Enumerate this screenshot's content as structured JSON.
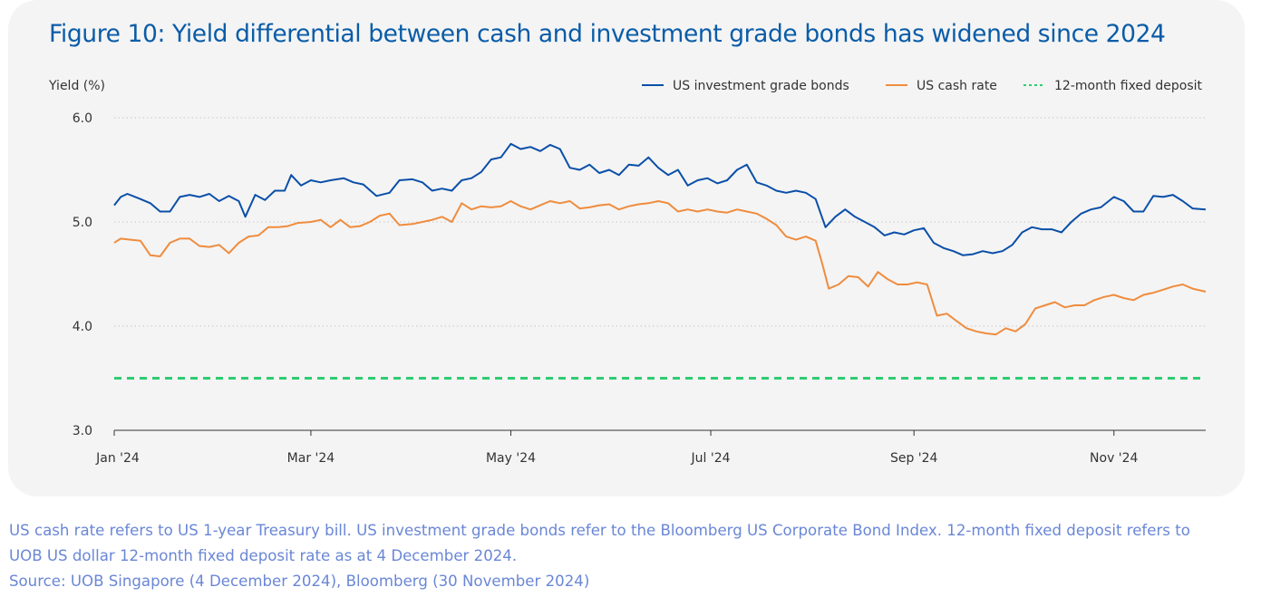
{
  "figure": {
    "title": "Figure 10: Yield differential between cash and investment grade bonds has widened since 2024"
  },
  "footnotes": [
    "US cash rate refers to US 1-year Treasury bill. US investment grade bonds refer to the Bloomberg US Corporate Bond Index. 12-month fixed deposit refers to",
    "UOB US dollar 12-month fixed deposit rate as at 4 December 2024.",
    "Source: UOB Singapore (4 December 2024), Bloomberg (30 November 2024)"
  ],
  "colors": {
    "ig_bonds": "#0a4fa8",
    "cash_rate": "#ef8c3e",
    "fixed_deposit": "#2ecc71",
    "grid": "#c8c8c8",
    "axis": "#333333"
  },
  "chart_data": {
    "type": "line",
    "title": "",
    "xlabel": "",
    "ylabel": "Yield (%)",
    "ylim": [
      3.0,
      6.0
    ],
    "yticks": [
      3.0,
      4.0,
      5.0,
      6.0
    ],
    "ytick_labels": [
      "3.0",
      "4.0",
      "5.0",
      "6.0"
    ],
    "xlim": [
      "2024-01-01",
      "2024-11-29"
    ],
    "xticks": [
      "2024-01-01",
      "2024-03-01",
      "2024-05-01",
      "2024-07-01",
      "2024-09-01",
      "2024-11-01"
    ],
    "xtick_labels": [
      "Jan '24",
      "Mar '24",
      "May '24",
      "Jul '24",
      "Sep '24",
      "Nov '24"
    ],
    "grid": "horizontal-dotted",
    "legend": "top-right",
    "series": [
      {
        "name": "US investment grade bonds",
        "style": "solid",
        "points": [
          [
            "2024-01-01",
            5.16
          ],
          [
            "2024-01-03",
            5.24
          ],
          [
            "2024-01-05",
            5.27
          ],
          [
            "2024-01-09",
            5.22
          ],
          [
            "2024-01-12",
            5.18
          ],
          [
            "2024-01-15",
            5.1
          ],
          [
            "2024-01-18",
            5.1
          ],
          [
            "2024-01-21",
            5.24
          ],
          [
            "2024-01-24",
            5.26
          ],
          [
            "2024-01-27",
            5.24
          ],
          [
            "2024-01-30",
            5.27
          ],
          [
            "2024-02-02",
            5.2
          ],
          [
            "2024-02-05",
            5.25
          ],
          [
            "2024-02-08",
            5.2
          ],
          [
            "2024-02-10",
            5.05
          ],
          [
            "2024-02-13",
            5.26
          ],
          [
            "2024-02-16",
            5.21
          ],
          [
            "2024-02-19",
            5.3
          ],
          [
            "2024-02-22",
            5.3
          ],
          [
            "2024-02-24",
            5.45
          ],
          [
            "2024-02-27",
            5.35
          ],
          [
            "2024-03-01",
            5.4
          ],
          [
            "2024-03-04",
            5.38
          ],
          [
            "2024-03-07",
            5.4
          ],
          [
            "2024-03-11",
            5.42
          ],
          [
            "2024-03-14",
            5.38
          ],
          [
            "2024-03-17",
            5.36
          ],
          [
            "2024-03-21",
            5.25
          ],
          [
            "2024-03-25",
            5.28
          ],
          [
            "2024-03-28",
            5.4
          ],
          [
            "2024-04-01",
            5.41
          ],
          [
            "2024-04-04",
            5.38
          ],
          [
            "2024-04-07",
            5.3
          ],
          [
            "2024-04-10",
            5.32
          ],
          [
            "2024-04-13",
            5.3
          ],
          [
            "2024-04-16",
            5.4
          ],
          [
            "2024-04-19",
            5.42
          ],
          [
            "2024-04-22",
            5.48
          ],
          [
            "2024-04-25",
            5.6
          ],
          [
            "2024-04-28",
            5.62
          ],
          [
            "2024-05-01",
            5.75
          ],
          [
            "2024-05-04",
            5.7
          ],
          [
            "2024-05-07",
            5.72
          ],
          [
            "2024-05-10",
            5.68
          ],
          [
            "2024-05-13",
            5.74
          ],
          [
            "2024-05-16",
            5.7
          ],
          [
            "2024-05-19",
            5.52
          ],
          [
            "2024-05-22",
            5.5
          ],
          [
            "2024-05-25",
            5.55
          ],
          [
            "2024-05-28",
            5.47
          ],
          [
            "2024-05-31",
            5.5
          ],
          [
            "2024-06-03",
            5.45
          ],
          [
            "2024-06-06",
            5.55
          ],
          [
            "2024-06-09",
            5.54
          ],
          [
            "2024-06-12",
            5.62
          ],
          [
            "2024-06-15",
            5.52
          ],
          [
            "2024-06-18",
            5.45
          ],
          [
            "2024-06-21",
            5.5
          ],
          [
            "2024-06-24",
            5.35
          ],
          [
            "2024-06-27",
            5.4
          ],
          [
            "2024-06-30",
            5.42
          ],
          [
            "2024-07-03",
            5.37
          ],
          [
            "2024-07-06",
            5.4
          ],
          [
            "2024-07-09",
            5.5
          ],
          [
            "2024-07-12",
            5.55
          ],
          [
            "2024-07-15",
            5.38
          ],
          [
            "2024-07-18",
            5.35
          ],
          [
            "2024-07-21",
            5.3
          ],
          [
            "2024-07-24",
            5.28
          ],
          [
            "2024-07-27",
            5.3
          ],
          [
            "2024-07-30",
            5.28
          ],
          [
            "2024-08-02",
            5.22
          ],
          [
            "2024-08-05",
            4.95
          ],
          [
            "2024-08-08",
            5.05
          ],
          [
            "2024-08-11",
            5.12
          ],
          [
            "2024-08-14",
            5.05
          ],
          [
            "2024-08-17",
            5.0
          ],
          [
            "2024-08-20",
            4.95
          ],
          [
            "2024-08-23",
            4.87
          ],
          [
            "2024-08-26",
            4.9
          ],
          [
            "2024-08-29",
            4.88
          ],
          [
            "2024-09-01",
            4.92
          ],
          [
            "2024-09-04",
            4.94
          ],
          [
            "2024-09-07",
            4.8
          ],
          [
            "2024-09-10",
            4.75
          ],
          [
            "2024-09-13",
            4.72
          ],
          [
            "2024-09-16",
            4.68
          ],
          [
            "2024-09-19",
            4.69
          ],
          [
            "2024-09-22",
            4.72
          ],
          [
            "2024-09-25",
            4.7
          ],
          [
            "2024-09-28",
            4.72
          ],
          [
            "2024-10-01",
            4.78
          ],
          [
            "2024-10-04",
            4.9
          ],
          [
            "2024-10-07",
            4.95
          ],
          [
            "2024-10-10",
            4.93
          ],
          [
            "2024-10-13",
            4.93
          ],
          [
            "2024-10-16",
            4.9
          ],
          [
            "2024-10-19",
            5.0
          ],
          [
            "2024-10-22",
            5.08
          ],
          [
            "2024-10-25",
            5.12
          ],
          [
            "2024-10-28",
            5.14
          ],
          [
            "2024-11-01",
            5.24
          ],
          [
            "2024-11-04",
            5.2
          ],
          [
            "2024-11-07",
            5.1
          ],
          [
            "2024-11-10",
            5.1
          ],
          [
            "2024-11-13",
            5.25
          ],
          [
            "2024-11-16",
            5.24
          ],
          [
            "2024-11-19",
            5.26
          ],
          [
            "2024-11-22",
            5.2
          ],
          [
            "2024-11-25",
            5.13
          ],
          [
            "2024-11-29",
            5.12
          ]
        ]
      },
      {
        "name": "US cash rate",
        "style": "solid",
        "points": [
          [
            "2024-01-01",
            4.8
          ],
          [
            "2024-01-03",
            4.84
          ],
          [
            "2024-01-06",
            4.83
          ],
          [
            "2024-01-09",
            4.82
          ],
          [
            "2024-01-12",
            4.68
          ],
          [
            "2024-01-15",
            4.67
          ],
          [
            "2024-01-18",
            4.8
          ],
          [
            "2024-01-21",
            4.84
          ],
          [
            "2024-01-24",
            4.84
          ],
          [
            "2024-01-27",
            4.77
          ],
          [
            "2024-01-30",
            4.76
          ],
          [
            "2024-02-02",
            4.78
          ],
          [
            "2024-02-05",
            4.7
          ],
          [
            "2024-02-08",
            4.8
          ],
          [
            "2024-02-11",
            4.86
          ],
          [
            "2024-02-14",
            4.87
          ],
          [
            "2024-02-17",
            4.95
          ],
          [
            "2024-02-20",
            4.95
          ],
          [
            "2024-02-23",
            4.96
          ],
          [
            "2024-02-26",
            4.99
          ],
          [
            "2024-03-01",
            5.0
          ],
          [
            "2024-03-04",
            5.02
          ],
          [
            "2024-03-07",
            4.95
          ],
          [
            "2024-03-10",
            5.02
          ],
          [
            "2024-03-13",
            4.95
          ],
          [
            "2024-03-16",
            4.96
          ],
          [
            "2024-03-19",
            5.0
          ],
          [
            "2024-03-22",
            5.06
          ],
          [
            "2024-03-25",
            5.08
          ],
          [
            "2024-03-28",
            4.97
          ],
          [
            "2024-04-01",
            4.98
          ],
          [
            "2024-04-04",
            5.0
          ],
          [
            "2024-04-07",
            5.02
          ],
          [
            "2024-04-10",
            5.05
          ],
          [
            "2024-04-13",
            5.0
          ],
          [
            "2024-04-16",
            5.18
          ],
          [
            "2024-04-19",
            5.12
          ],
          [
            "2024-04-22",
            5.15
          ],
          [
            "2024-04-25",
            5.14
          ],
          [
            "2024-04-28",
            5.15
          ],
          [
            "2024-05-01",
            5.2
          ],
          [
            "2024-05-04",
            5.15
          ],
          [
            "2024-05-07",
            5.12
          ],
          [
            "2024-05-10",
            5.16
          ],
          [
            "2024-05-13",
            5.2
          ],
          [
            "2024-05-16",
            5.18
          ],
          [
            "2024-05-19",
            5.2
          ],
          [
            "2024-05-22",
            5.13
          ],
          [
            "2024-05-25",
            5.14
          ],
          [
            "2024-05-28",
            5.16
          ],
          [
            "2024-05-31",
            5.17
          ],
          [
            "2024-06-03",
            5.12
          ],
          [
            "2024-06-06",
            5.15
          ],
          [
            "2024-06-09",
            5.17
          ],
          [
            "2024-06-12",
            5.18
          ],
          [
            "2024-06-15",
            5.2
          ],
          [
            "2024-06-18",
            5.18
          ],
          [
            "2024-06-21",
            5.1
          ],
          [
            "2024-06-24",
            5.12
          ],
          [
            "2024-06-27",
            5.1
          ],
          [
            "2024-06-30",
            5.12
          ],
          [
            "2024-07-03",
            5.1
          ],
          [
            "2024-07-06",
            5.09
          ],
          [
            "2024-07-09",
            5.12
          ],
          [
            "2024-07-12",
            5.1
          ],
          [
            "2024-07-15",
            5.08
          ],
          [
            "2024-07-18",
            5.03
          ],
          [
            "2024-07-21",
            4.97
          ],
          [
            "2024-07-24",
            4.86
          ],
          [
            "2024-07-27",
            4.83
          ],
          [
            "2024-07-30",
            4.86
          ],
          [
            "2024-08-02",
            4.82
          ],
          [
            "2024-08-04",
            4.6
          ],
          [
            "2024-08-06",
            4.36
          ],
          [
            "2024-08-09",
            4.4
          ],
          [
            "2024-08-12",
            4.48
          ],
          [
            "2024-08-15",
            4.47
          ],
          [
            "2024-08-18",
            4.38
          ],
          [
            "2024-08-21",
            4.52
          ],
          [
            "2024-08-24",
            4.45
          ],
          [
            "2024-08-27",
            4.4
          ],
          [
            "2024-08-30",
            4.4
          ],
          [
            "2024-09-02",
            4.42
          ],
          [
            "2024-09-05",
            4.4
          ],
          [
            "2024-09-08",
            4.1
          ],
          [
            "2024-09-11",
            4.12
          ],
          [
            "2024-09-14",
            4.05
          ],
          [
            "2024-09-17",
            3.98
          ],
          [
            "2024-09-20",
            3.95
          ],
          [
            "2024-09-23",
            3.93
          ],
          [
            "2024-09-26",
            3.92
          ],
          [
            "2024-09-29",
            3.98
          ],
          [
            "2024-10-02",
            3.95
          ],
          [
            "2024-10-05",
            4.02
          ],
          [
            "2024-10-08",
            4.17
          ],
          [
            "2024-10-11",
            4.2
          ],
          [
            "2024-10-14",
            4.23
          ],
          [
            "2024-10-17",
            4.18
          ],
          [
            "2024-10-20",
            4.2
          ],
          [
            "2024-10-23",
            4.2
          ],
          [
            "2024-10-26",
            4.25
          ],
          [
            "2024-10-29",
            4.28
          ],
          [
            "2024-11-01",
            4.3
          ],
          [
            "2024-11-04",
            4.27
          ],
          [
            "2024-11-07",
            4.25
          ],
          [
            "2024-11-10",
            4.3
          ],
          [
            "2024-11-13",
            4.32
          ],
          [
            "2024-11-16",
            4.35
          ],
          [
            "2024-11-19",
            4.38
          ],
          [
            "2024-11-22",
            4.4
          ],
          [
            "2024-11-25",
            4.36
          ],
          [
            "2024-11-29",
            4.33
          ]
        ]
      },
      {
        "name": "12-month fixed deposit",
        "style": "dashed",
        "points": [
          [
            "2024-01-01",
            3.5
          ],
          [
            "2024-11-29",
            3.5
          ]
        ]
      }
    ]
  }
}
